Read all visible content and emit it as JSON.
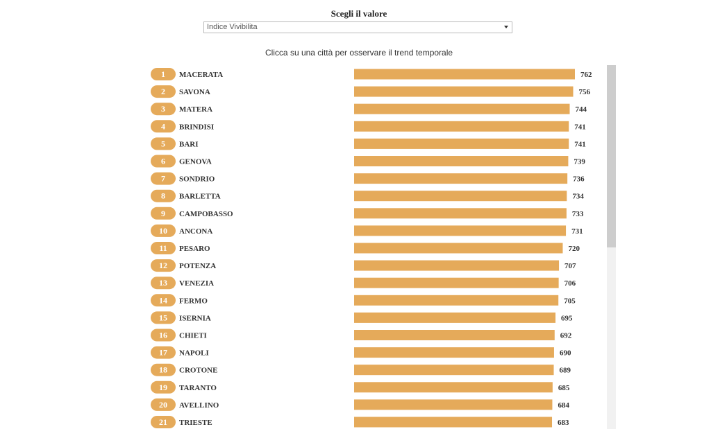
{
  "controls": {
    "title": "Scegli il valore",
    "selected": "Indice Vivibilita"
  },
  "instruction": "Clicca su una città per osservare il trend temporale",
  "colors": {
    "bar": "#e5aa5a",
    "badge": "#e5aa5a",
    "text": "#333333"
  },
  "chart_data": {
    "type": "bar",
    "orientation": "horizontal",
    "categories": [
      "MACERATA",
      "SAVONA",
      "MATERA",
      "BRINDISI",
      "BARI",
      "GENOVA",
      "SONDRIO",
      "BARLETTA",
      "CAMPOBASSO",
      "ANCONA",
      "PESARO",
      "POTENZA",
      "VENEZIA",
      "FERMO",
      "ISERNIA",
      "CHIETI",
      "NAPOLI",
      "CROTONE",
      "TARANTO",
      "AVELLINO",
      "TRIESTE"
    ],
    "ranks": [
      "1",
      "2",
      "3",
      "4",
      "5",
      "6",
      "7",
      "8",
      "9",
      "10",
      "11",
      "12",
      "13",
      "14",
      "15",
      "16",
      "17",
      "18",
      "19",
      "20",
      "21"
    ],
    "values": [
      762,
      756,
      744,
      741,
      741,
      739,
      736,
      734,
      733,
      731,
      720,
      707,
      706,
      705,
      695,
      692,
      690,
      689,
      685,
      684,
      683
    ],
    "xlim": [
      0,
      762
    ]
  }
}
